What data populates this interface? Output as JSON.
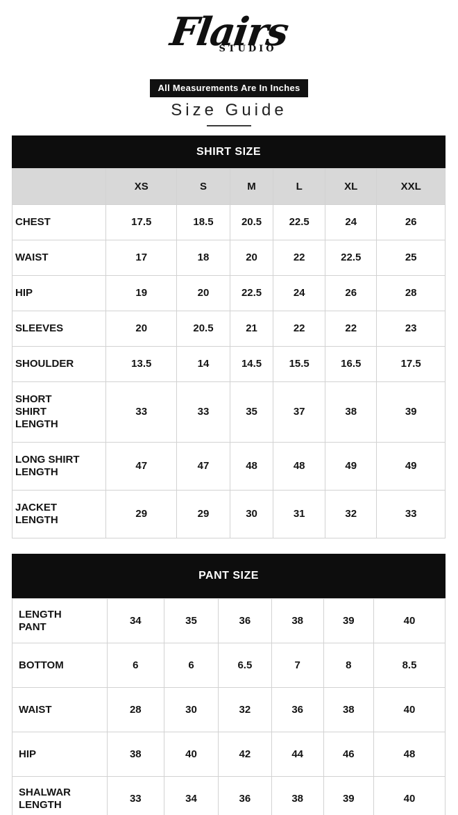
{
  "brand": {
    "name": "Flairs",
    "subname": "STUDIO"
  },
  "banner": "All Measurements Are In Inches",
  "page_title": "Size Guide",
  "shirt_table": {
    "title": "SHIRT SIZE",
    "columns": [
      "",
      "XS",
      "S",
      "M",
      "L",
      "XL",
      "XXL"
    ],
    "rows": [
      {
        "label": "CHEST",
        "values": [
          "17.5",
          "18.5",
          "20.5",
          "22.5",
          "24",
          "26"
        ]
      },
      {
        "label": "WAIST",
        "values": [
          "17",
          "18",
          "20",
          "22",
          "22.5",
          "25"
        ]
      },
      {
        "label": "HIP",
        "values": [
          "19",
          "20",
          "22.5",
          "24",
          "26",
          "28"
        ]
      },
      {
        "label": "SLEEVES",
        "values": [
          "20",
          "20.5",
          "21",
          "22",
          "22",
          "23"
        ]
      },
      {
        "label": "SHOULDER",
        "values": [
          "13.5",
          "14",
          "14.5",
          "15.5",
          "16.5",
          "17.5"
        ]
      },
      {
        "label": "SHORT SHIRT LENGTH",
        "values": [
          "33",
          "33",
          "35",
          "37",
          "38",
          "39"
        ]
      },
      {
        "label": "LONG SHIRT LENGTH",
        "values": [
          "47",
          "47",
          "48",
          "48",
          "49",
          "49"
        ]
      },
      {
        "label": "JACKET LENGTH",
        "values": [
          "29",
          "29",
          "30",
          "31",
          "32",
          "33"
        ]
      }
    ]
  },
  "pant_table": {
    "title": "PANT SIZE",
    "rows": [
      {
        "label": "LENGTH PANT",
        "values": [
          "34",
          "35",
          "36",
          "38",
          "39",
          "40"
        ]
      },
      {
        "label": "BOTTOM",
        "values": [
          "6",
          "6",
          "6.5",
          "7",
          "8",
          "8.5"
        ]
      },
      {
        "label": "WAIST",
        "values": [
          "28",
          "30",
          "32",
          "36",
          "38",
          "40"
        ]
      },
      {
        "label": "HIP",
        "values": [
          "38",
          "40",
          "42",
          "44",
          "46",
          "48"
        ]
      },
      {
        "label": "SHALWAR LENGTH",
        "values": [
          "33",
          "34",
          "36",
          "38",
          "39",
          "40"
        ]
      }
    ]
  },
  "colors": {
    "title_bar_bg": "#0d0d0d",
    "banner_bg": "#111111",
    "header_row_bg": "#d8d8d8",
    "cell_border": "#d2d2d2",
    "text": "#141414",
    "background": "#ffffff"
  }
}
